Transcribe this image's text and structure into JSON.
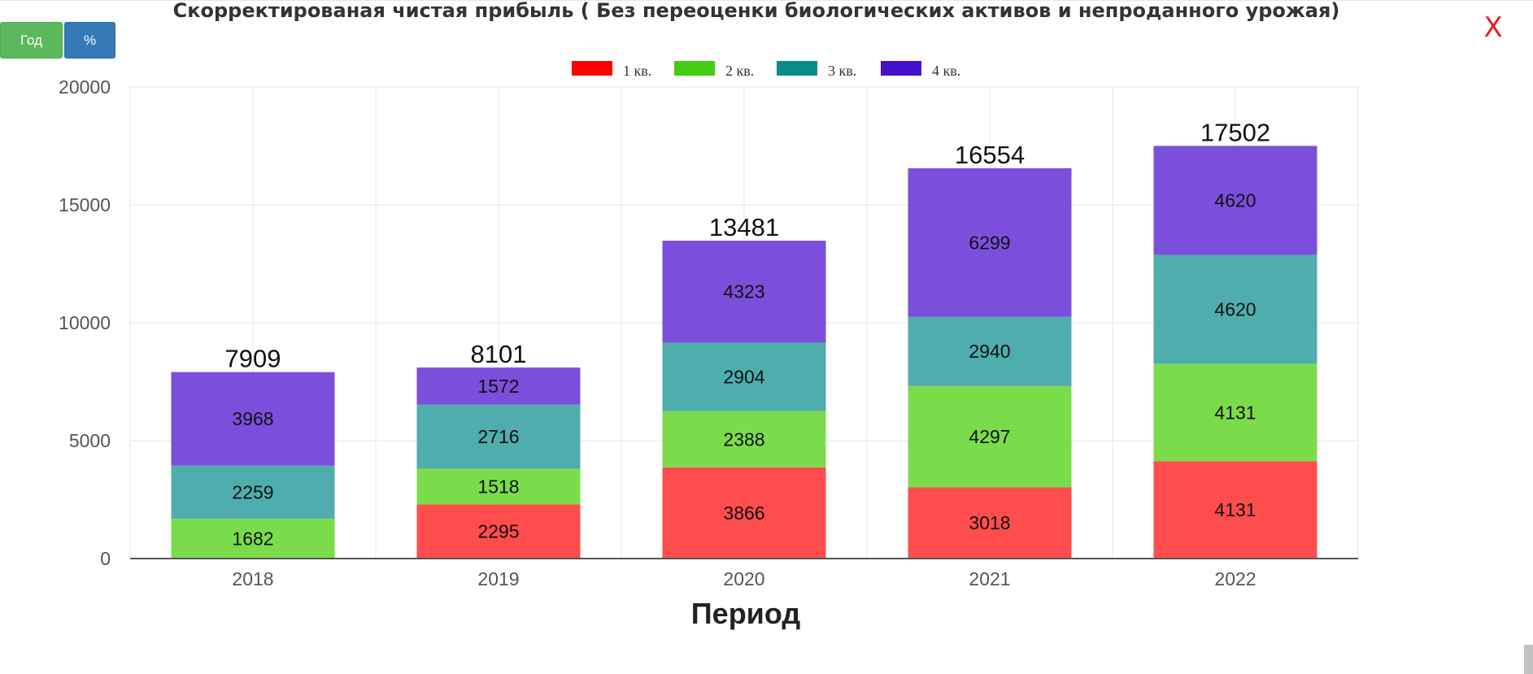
{
  "buttons": {
    "year_label": "Год",
    "percent_label": "%"
  },
  "close_label": "X",
  "colors": {
    "q1": "#ff4d4d",
    "q2": "#7bdc4b",
    "q3": "#4fadad",
    "q4": "#7b4fdc",
    "legend_q1": "#ff0000",
    "legend_q2": "#44cc11",
    "legend_q3": "#0b8a8a",
    "legend_q4": "#4411cc"
  },
  "chart_data": {
    "type": "bar",
    "stacked": true,
    "title": "Скорректированая чистая прибыль ( Без переоценки биологических активов и непроданного урожая)",
    "xlabel": "Период",
    "ylabel": "",
    "ylim": [
      0,
      20000
    ],
    "yticks": [
      0,
      5000,
      10000,
      15000,
      20000
    ],
    "grid": true,
    "legend_position": "top",
    "categories": [
      "2018",
      "2019",
      "2020",
      "2021",
      "2022"
    ],
    "series": [
      {
        "name": "1 кв.",
        "values": [
          0,
          2295,
          3866,
          3018,
          4131
        ]
      },
      {
        "name": "2 кв.",
        "values": [
          1682,
          1518,
          2388,
          4297,
          4131
        ]
      },
      {
        "name": "3 кв.",
        "values": [
          2259,
          2716,
          2904,
          2940,
          4620
        ]
      },
      {
        "name": "4 кв.",
        "values": [
          3968,
          1572,
          4323,
          6299,
          4620
        ]
      }
    ],
    "totals": [
      7909,
      8101,
      13481,
      16554,
      17502
    ]
  }
}
